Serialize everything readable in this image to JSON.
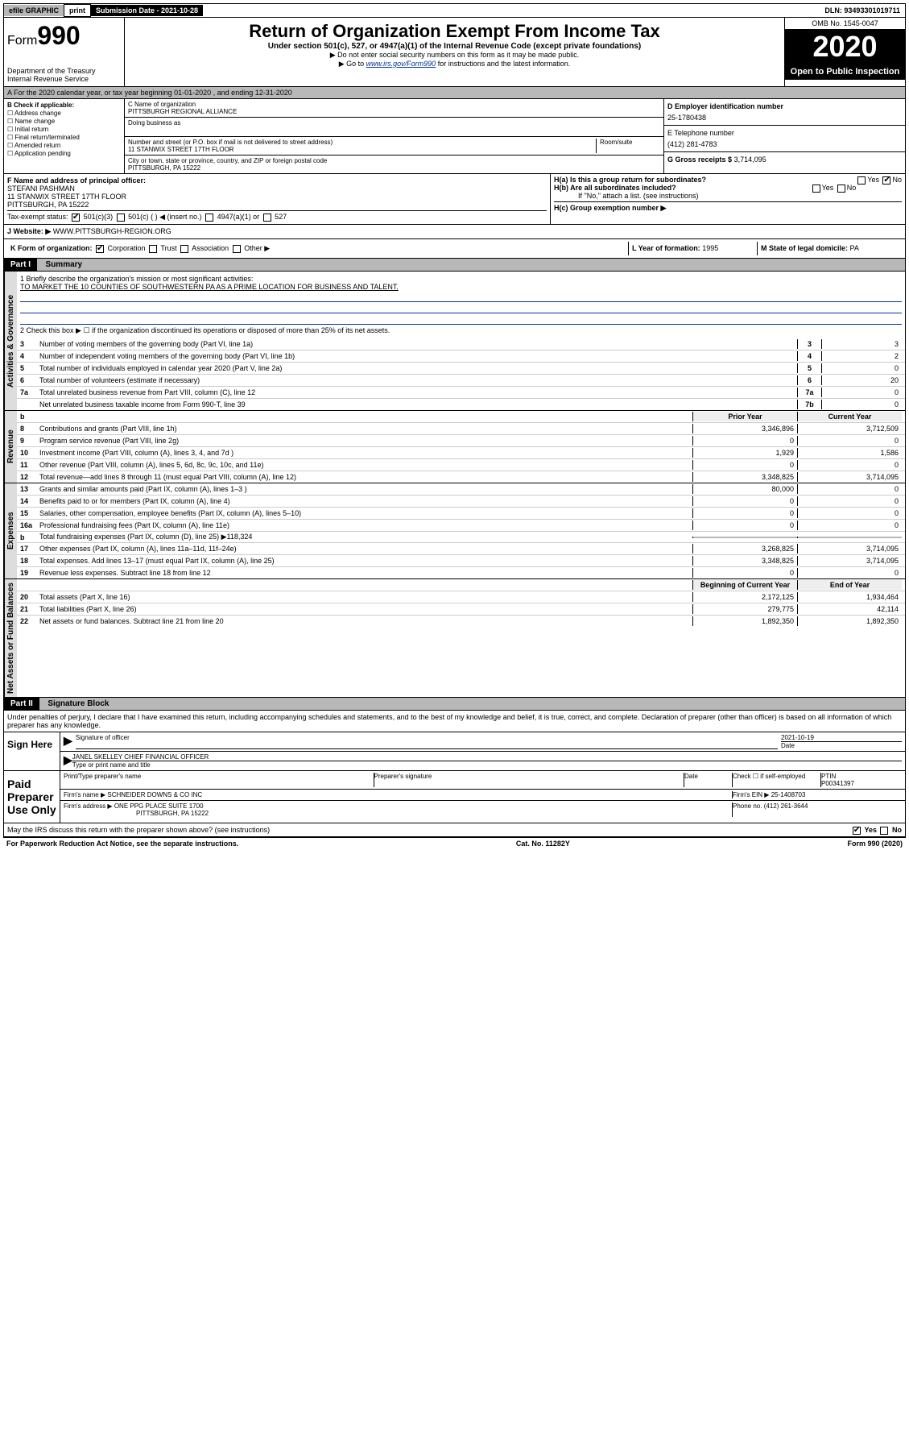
{
  "topbar": {
    "efile": "efile GRAPHIC",
    "print": "print",
    "subdate": "Submission Date - 2021-10-28",
    "dln": "DLN: 93493301019711"
  },
  "header": {
    "form_prefix": "Form",
    "form_num": "990",
    "dept": "Department of the Treasury\nInternal Revenue Service",
    "title": "Return of Organization Exempt From Income Tax",
    "subtitle": "Under section 501(c), 527, or 4947(a)(1) of the Internal Revenue Code (except private foundations)",
    "note1": "▶ Do not enter social security numbers on this form as it may be made public.",
    "note2_pre": "▶ Go to ",
    "note2_link": "www.irs.gov/Form990",
    "note2_post": " for instructions and the latest information.",
    "omb": "OMB No. 1545-0047",
    "year": "2020",
    "open": "Open to Public Inspection"
  },
  "rowA": "A For the 2020 calendar year, or tax year beginning 01-01-2020     , and ending 12-31-2020",
  "sectionB": {
    "label": "B Check if applicable:",
    "items": [
      "☐ Address change",
      "☐ Name change",
      "☐ Initial return",
      "☐ Final return/terminated",
      "☐ Amended return",
      "☐ Application pending"
    ]
  },
  "sectionC": {
    "name_label": "C Name of organization",
    "name": "PITTSBURGH REGIONAL ALLIANCE",
    "dba_label": "Doing business as",
    "addr_label": "Number and street (or P.O. box if mail is not delivered to street address)",
    "room_label": "Room/suite",
    "addr": "11 STANWIX STREET 17TH FLOOR",
    "city_label": "City or town, state or province, country, and ZIP or foreign postal code",
    "city": "PITTSBURGH, PA  15222"
  },
  "sectionD": {
    "label": "D Employer identification number",
    "ein": "25-1780438",
    "tel_label": "E Telephone number",
    "tel": "(412) 281-4783",
    "gross_label": "G Gross receipts $",
    "gross": "3,714,095"
  },
  "sectionF": {
    "label": "F Name and address of principal officer:",
    "name": "STEFANI PASHMAN",
    "addr1": "11 STANWIX STREET 17TH FLOOR",
    "addr2": "PITTSBURGH, PA  15222"
  },
  "sectionH": {
    "a": "H(a)  Is this a group return for subordinates?",
    "b": "H(b)  Are all subordinates included?",
    "b_note": "If \"No,\" attach a list. (see instructions)",
    "c": "H(c)  Group exemption number ▶",
    "yes": "Yes",
    "no": "No"
  },
  "taxExempt": {
    "label": "Tax-exempt status:",
    "opt1": "501(c)(3)",
    "opt2": "501(c) (   ) ◀ (insert no.)",
    "opt3": "4947(a)(1) or",
    "opt4": "527"
  },
  "rowJ": {
    "label": "J    Website: ▶",
    "val": "WWW.PITTSBURGH-REGION.ORG"
  },
  "rowK": {
    "label": "K Form of organization:",
    "corp": "Corporation",
    "trust": "Trust",
    "assoc": "Association",
    "other": "Other ▶",
    "l_label": "L Year of formation:",
    "l_val": "1995",
    "m_label": "M State of legal domicile:",
    "m_val": "PA"
  },
  "part1": {
    "hdr": "Part I",
    "title": "Summary",
    "q1": "1  Briefly describe the organization's mission or most significant activities:",
    "q1_ans": "TO MARKET THE 10 COUNTIES OF SOUTHWESTERN PA AS A PRIME LOCATION FOR BUSINESS AND TALENT.",
    "q2": "2   Check this box ▶ ☐  if the organization discontinued its operations or disposed of more than 25% of its net assets.",
    "governance": [
      {
        "n": "3",
        "t": "Number of voting members of the governing body (Part VI, line 1a)",
        "b": "3",
        "v": "3"
      },
      {
        "n": "4",
        "t": "Number of independent voting members of the governing body (Part VI, line 1b)",
        "b": "4",
        "v": "2"
      },
      {
        "n": "5",
        "t": "Total number of individuals employed in calendar year 2020 (Part V, line 2a)",
        "b": "5",
        "v": "0"
      },
      {
        "n": "6",
        "t": "Total number of volunteers (estimate if necessary)",
        "b": "6",
        "v": "20"
      },
      {
        "n": "7a",
        "t": "Total unrelated business revenue from Part VIII, column (C), line 12",
        "b": "7a",
        "v": "0"
      },
      {
        "n": "",
        "t": "Net unrelated business taxable income from Form 990-T, line 39",
        "b": "7b",
        "v": "0"
      }
    ],
    "col_prior": "Prior Year",
    "col_current": "Current Year",
    "revenue": [
      {
        "n": "8",
        "t": "Contributions and grants (Part VIII, line 1h)",
        "p": "3,346,896",
        "c": "3,712,509"
      },
      {
        "n": "9",
        "t": "Program service revenue (Part VIII, line 2g)",
        "p": "0",
        "c": "0"
      },
      {
        "n": "10",
        "t": "Investment income (Part VIII, column (A), lines 3, 4, and 7d )",
        "p": "1,929",
        "c": "1,586"
      },
      {
        "n": "11",
        "t": "Other revenue (Part VIII, column (A), lines 5, 6d, 8c, 9c, 10c, and 11e)",
        "p": "0",
        "c": "0"
      },
      {
        "n": "12",
        "t": "Total revenue—add lines 8 through 11 (must equal Part VIII, column (A), line 12)",
        "p": "3,348,825",
        "c": "3,714,095"
      }
    ],
    "expenses": [
      {
        "n": "13",
        "t": "Grants and similar amounts paid (Part IX, column (A), lines 1–3 )",
        "p": "80,000",
        "c": "0"
      },
      {
        "n": "14",
        "t": "Benefits paid to or for members (Part IX, column (A), line 4)",
        "p": "0",
        "c": "0"
      },
      {
        "n": "15",
        "t": "Salaries, other compensation, employee benefits (Part IX, column (A), lines 5–10)",
        "p": "0",
        "c": "0"
      },
      {
        "n": "16a",
        "t": "Professional fundraising fees (Part IX, column (A), line 11e)",
        "p": "0",
        "c": "0"
      },
      {
        "n": "b",
        "t": "Total fundraising expenses (Part IX, column (D), line 25) ▶118,324",
        "p": "",
        "c": "",
        "grey": true
      },
      {
        "n": "17",
        "t": "Other expenses (Part IX, column (A), lines 11a–11d, 11f–24e)",
        "p": "3,268,825",
        "c": "3,714,095"
      },
      {
        "n": "18",
        "t": "Total expenses. Add lines 13–17 (must equal Part IX, column (A), line 25)",
        "p": "3,348,825",
        "c": "3,714,095"
      },
      {
        "n": "19",
        "t": "Revenue less expenses. Subtract line 18 from line 12",
        "p": "0",
        "c": "0"
      }
    ],
    "col_begin": "Beginning of Current Year",
    "col_end": "End of Year",
    "netassets": [
      {
        "n": "20",
        "t": "Total assets (Part X, line 16)",
        "p": "2,172,125",
        "c": "1,934,464"
      },
      {
        "n": "21",
        "t": "Total liabilities (Part X, line 26)",
        "p": "279,775",
        "c": "42,114"
      },
      {
        "n": "22",
        "t": "Net assets or fund balances. Subtract line 21 from line 20",
        "p": "1,892,350",
        "c": "1,892,350"
      }
    ],
    "side_gov": "Activities & Governance",
    "side_rev": "Revenue",
    "side_exp": "Expenses",
    "side_net": "Net Assets or Fund Balances"
  },
  "part2": {
    "hdr": "Part II",
    "title": "Signature Block",
    "perjury": "Under penalties of perjury, I declare that I have examined this return, including accompanying schedules and statements, and to the best of my knowledge and belief, it is true, correct, and complete. Declaration of preparer (other than officer) is based on all information of which preparer has any knowledge.",
    "sign_here": "Sign Here",
    "sig_officer": "Signature of officer",
    "sig_date": "2021-10-19",
    "sig_date_label": "Date",
    "officer_name": "JANEL SKELLEY CHIEF FINANCIAL OFFICER",
    "officer_label": "Type or print name and title",
    "paid": "Paid Preparer Use Only",
    "prep_name_label": "Print/Type preparer's name",
    "prep_sig_label": "Preparer's signature",
    "date_label": "Date",
    "check_self": "Check ☐ if self-employed",
    "ptin_label": "PTIN",
    "ptin": "P00341397",
    "firm_name_label": "Firm's name     ▶",
    "firm_name": "SCHNEIDER DOWNS & CO INC",
    "firm_ein_label": "Firm's EIN ▶",
    "firm_ein": "25-1408703",
    "firm_addr_label": "Firm's address ▶",
    "firm_addr1": "ONE PPG PLACE SUITE 1700",
    "firm_addr2": "PITTSBURGH, PA  15222",
    "phone_label": "Phone no.",
    "phone": "(412) 261-3644",
    "discuss": "May the IRS discuss this return with the preparer shown above? (see instructions)"
  },
  "footer": {
    "left": "For Paperwork Reduction Act Notice, see the separate instructions.",
    "mid": "Cat. No. 11282Y",
    "right": "Form 990 (2020)"
  }
}
